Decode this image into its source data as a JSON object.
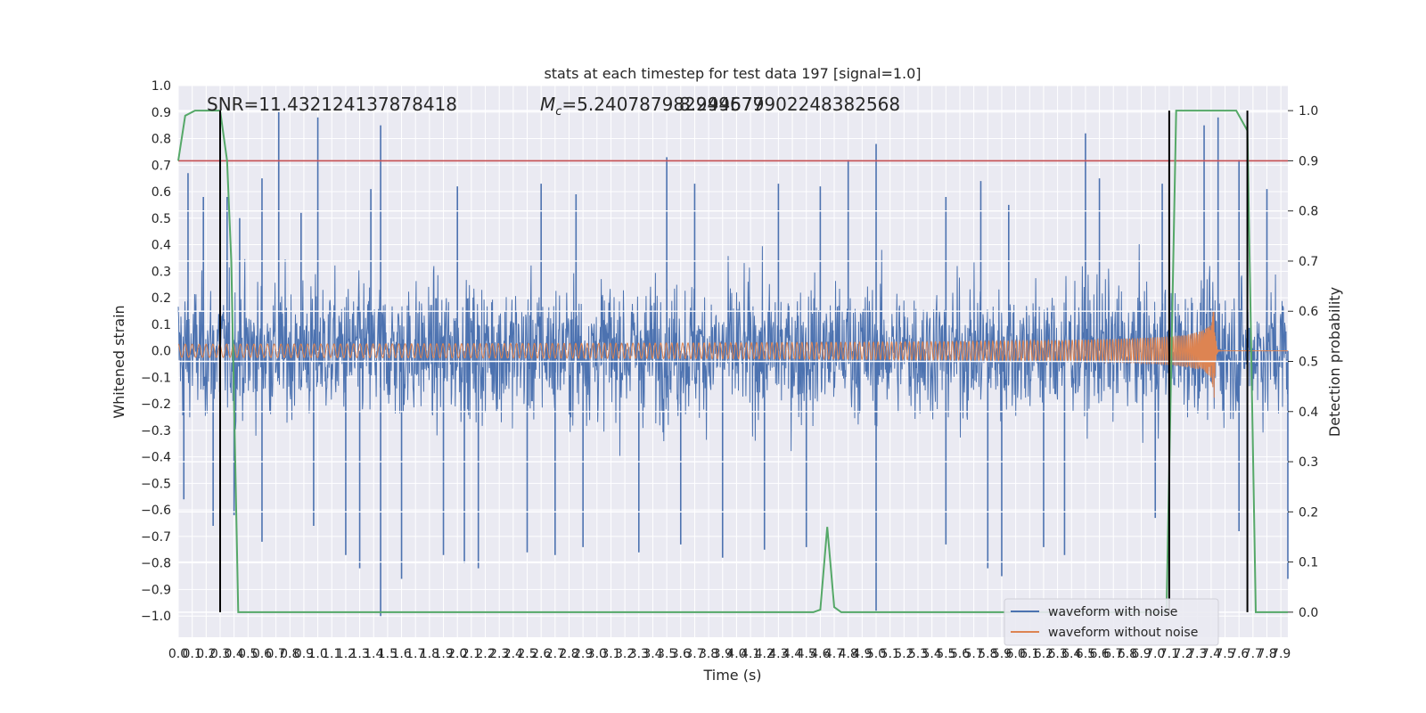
{
  "chart_data": {
    "type": "line",
    "title": "stats at each timestep for test data 197 [signal=1.0]",
    "xlabel": "Time (s)",
    "ylabel_left": "Whitened strain",
    "ylabel_right": "Detection probability",
    "xlim": [
      0.0,
      7.95
    ],
    "ylim_left": [
      -1.08,
      1.0
    ],
    "ylim_right": [
      -0.05,
      1.05
    ],
    "x_ticks": [
      "0.0",
      "0.1",
      "0.2",
      "0.3",
      "0.4",
      "0.5",
      "0.6",
      "0.7",
      "0.8",
      "0.9",
      "1.0",
      "1.1",
      "1.2",
      "1.3",
      "1.4",
      "1.5",
      "1.6",
      "1.7",
      "1.8",
      "1.9",
      "2.0",
      "2.1",
      "2.2",
      "2.3",
      "2.4",
      "2.5",
      "2.6",
      "2.7",
      "2.8",
      "2.9",
      "3.0",
      "3.1",
      "3.2",
      "3.3",
      "3.4",
      "3.5",
      "3.6",
      "3.7",
      "3.8",
      "3.9",
      "4.0",
      "4.1",
      "4.2",
      "4.3",
      "4.4",
      "4.5",
      "4.6",
      "4.7",
      "4.8",
      "4.9",
      "5.0",
      "5.1",
      "5.2",
      "5.3",
      "5.4",
      "5.5",
      "5.6",
      "5.7",
      "5.8",
      "5.9",
      "6.0",
      "6.1",
      "6.2",
      "6.3",
      "6.4",
      "6.5",
      "6.6",
      "6.7",
      "6.8",
      "6.9",
      "7.0",
      "7.1",
      "7.2",
      "7.3",
      "7.4",
      "7.5",
      "7.6",
      "7.7",
      "7.8",
      "7.9"
    ],
    "y_ticks_left": [
      "1.0",
      "0.9",
      "0.8",
      "0.7",
      "0.6",
      "0.5",
      "0.4",
      "0.3",
      "0.2",
      "0.1",
      "0.0",
      "−0.1",
      "−0.2",
      "−0.3",
      "−0.4",
      "−0.5",
      "−0.6",
      "−0.7",
      "−0.8",
      "−0.9",
      "−1.0"
    ],
    "y_ticks_right": [
      "1.0",
      "0.9",
      "0.8",
      "0.7",
      "0.6",
      "0.5",
      "0.4",
      "0.3",
      "0.2",
      "0.1",
      "0.0"
    ],
    "annotations": {
      "snr": "SNR=11.432124137878418",
      "mc_symbol": "M",
      "mc_sub": "c",
      "mc_value": "=5.240787982949677",
      "mc_overlap": "8.294579902248382568"
    },
    "legend": {
      "position": "lower-right",
      "entries": [
        "waveform with noise",
        "waveform without noise"
      ]
    },
    "colors": {
      "noise": "#4c72b0",
      "signal": "#dd8452",
      "probability": "#55a868",
      "threshold": "#c44e52",
      "markers": "#000000",
      "background": "#eaeaf2",
      "grid": "#ffffff"
    },
    "threshold_probability": 0.9,
    "marker_times": [
      0.3,
      7.1,
      7.66
    ],
    "noise_band": {
      "typical_abs": 0.45,
      "max_abs": 1.0
    },
    "chirp": {
      "f0_hz": 20,
      "amp_start": 0.025,
      "merger_time": 7.42,
      "peak_amp": 0.25,
      "ringdown_end": 7.48
    },
    "series": [
      {
        "name": "waveform with noise",
        "axis": "left",
        "color": "#4c72b0",
        "peaks": [
          [
            0.07,
            0.67
          ],
          [
            0.18,
            0.58
          ],
          [
            0.35,
            0.58
          ],
          [
            0.44,
            0.5
          ],
          [
            0.6,
            0.65
          ],
          [
            0.72,
            0.9
          ],
          [
            0.88,
            0.52
          ],
          [
            1.0,
            0.88
          ],
          [
            1.38,
            0.61
          ],
          [
            1.45,
            0.85
          ],
          [
            2.0,
            0.62
          ],
          [
            2.6,
            0.63
          ],
          [
            2.85,
            0.59
          ],
          [
            3.5,
            0.73
          ],
          [
            3.7,
            0.63
          ],
          [
            4.3,
            0.63
          ],
          [
            4.6,
            0.62
          ],
          [
            4.8,
            0.72
          ],
          [
            5.0,
            0.78
          ],
          [
            5.5,
            0.58
          ],
          [
            5.75,
            0.64
          ],
          [
            5.95,
            0.55
          ],
          [
            6.5,
            0.82
          ],
          [
            6.6,
            0.65
          ],
          [
            7.05,
            0.63
          ],
          [
            7.35,
            0.85
          ],
          [
            7.45,
            0.88
          ],
          [
            7.6,
            0.72
          ],
          [
            7.8,
            0.61
          ],
          [
            0.04,
            -0.56
          ],
          [
            0.25,
            -0.66
          ],
          [
            0.4,
            -0.62
          ],
          [
            0.6,
            -0.72
          ],
          [
            0.97,
            -0.66
          ],
          [
            1.2,
            -0.77
          ],
          [
            1.3,
            -0.82
          ],
          [
            1.45,
            -1.0
          ],
          [
            1.6,
            -0.86
          ],
          [
            1.9,
            -0.77
          ],
          [
            2.05,
            -0.8
          ],
          [
            2.15,
            -0.82
          ],
          [
            2.5,
            -0.76
          ],
          [
            2.7,
            -0.77
          ],
          [
            2.9,
            -0.74
          ],
          [
            3.3,
            -0.76
          ],
          [
            3.6,
            -0.73
          ],
          [
            3.9,
            -0.78
          ],
          [
            4.2,
            -0.75
          ],
          [
            4.5,
            -0.74
          ],
          [
            5.0,
            -0.98
          ],
          [
            5.5,
            -0.73
          ],
          [
            5.8,
            -0.82
          ],
          [
            5.9,
            -0.85
          ],
          [
            6.2,
            -0.74
          ],
          [
            6.35,
            -0.77
          ],
          [
            7.0,
            -0.63
          ],
          [
            7.1,
            -0.72
          ],
          [
            7.6,
            -0.68
          ],
          [
            7.95,
            -0.86
          ]
        ]
      },
      {
        "name": "waveform without noise",
        "axis": "left",
        "color": "#dd8452"
      },
      {
        "name": "detection probability",
        "axis": "right",
        "color": "#55a868",
        "x": [
          0.0,
          0.05,
          0.12,
          0.3,
          0.35,
          0.38,
          0.43,
          4.55,
          4.6,
          4.65,
          4.7,
          4.75,
          7.08,
          7.15,
          7.5,
          7.58,
          7.66,
          7.72,
          7.95
        ],
        "y": [
          0.9,
          0.99,
          1.0,
          1.0,
          0.9,
          0.7,
          0.0,
          0.0,
          0.005,
          0.17,
          0.01,
          0.0,
          0.0,
          1.0,
          1.0,
          1.0,
          0.96,
          0.0,
          0.0
        ]
      }
    ]
  }
}
